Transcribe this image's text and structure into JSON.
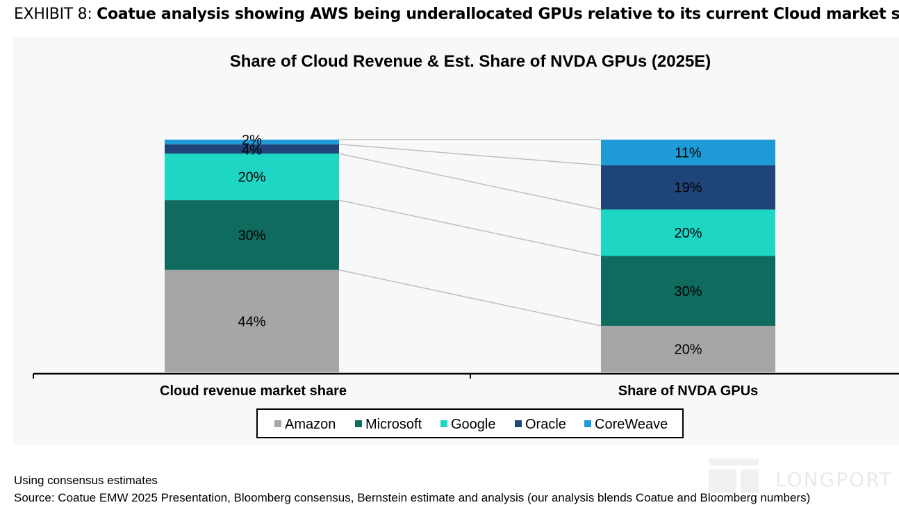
{
  "exhibit": {
    "label": "EXHIBIT 8:",
    "title": "Coatue analysis showing AWS being underallocated GPUs relative to its current Cloud market share"
  },
  "chart_data": {
    "type": "bar",
    "stacked": true,
    "title": "Share of Cloud Revenue & Est. Share of NVDA GPUs (2025E)",
    "categories": [
      "Cloud revenue market share",
      "Share of NVDA GPUs"
    ],
    "series": [
      {
        "name": "Amazon",
        "color": "#a6a6a6",
        "values": [
          44,
          20
        ],
        "labels": [
          "44%",
          "20%"
        ]
      },
      {
        "name": "Microsoft",
        "color": "#0f6b5e",
        "values": [
          30,
          30
        ],
        "labels": [
          "30%",
          "30%"
        ]
      },
      {
        "name": "Google",
        "color": "#1dd6c4",
        "values": [
          20,
          20
        ],
        "labels": [
          "20%",
          "20%"
        ]
      },
      {
        "name": "Oracle",
        "color": "#1f4479",
        "values": [
          4,
          19
        ],
        "labels": [
          "4%",
          "19%"
        ]
      },
      {
        "name": "CoreWeave",
        "color": "#1e9bd7",
        "values": [
          2,
          11
        ],
        "labels": [
          "2%",
          "11%"
        ]
      }
    ],
    "ylim": [
      0,
      100
    ],
    "connector_lines": true,
    "legend_position": "bottom-center"
  },
  "notes": {
    "line1": "Using consensus estimates",
    "line2": "Source: Coatue EMW 2025 Presentation, Bloomberg consensus, Bernstein estimate and analysis (our analysis blends Coatue and Bloomberg numbers)"
  },
  "watermark": {
    "text": "LONGPORT"
  }
}
